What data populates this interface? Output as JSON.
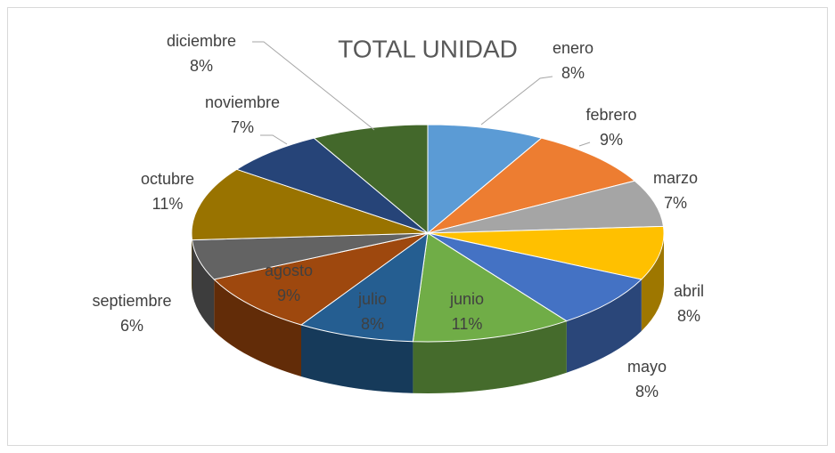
{
  "chart_data": {
    "type": "pie",
    "title": "TOTAL UNIDAD",
    "categories": [
      "enero",
      "febrero",
      "marzo",
      "abril",
      "mayo",
      "junio",
      "julio",
      "agosto",
      "septiembre",
      "octubre",
      "noviembre",
      "diciembre"
    ],
    "values": [
      8,
      9,
      7,
      8,
      8,
      11,
      8,
      9,
      6,
      11,
      7,
      8
    ],
    "value_labels": [
      "8%",
      "9%",
      "7%",
      "8%",
      "8%",
      "11%",
      "8%",
      "9%",
      "6%",
      "11%",
      "7%",
      "8%"
    ],
    "colors": [
      "#5b9bd5",
      "#ed7d31",
      "#a5a5a5",
      "#ffc000",
      "#4472c4",
      "#70ad47",
      "#255e91",
      "#9e480e",
      "#636363",
      "#997300",
      "#264478",
      "#43682b"
    ]
  }
}
